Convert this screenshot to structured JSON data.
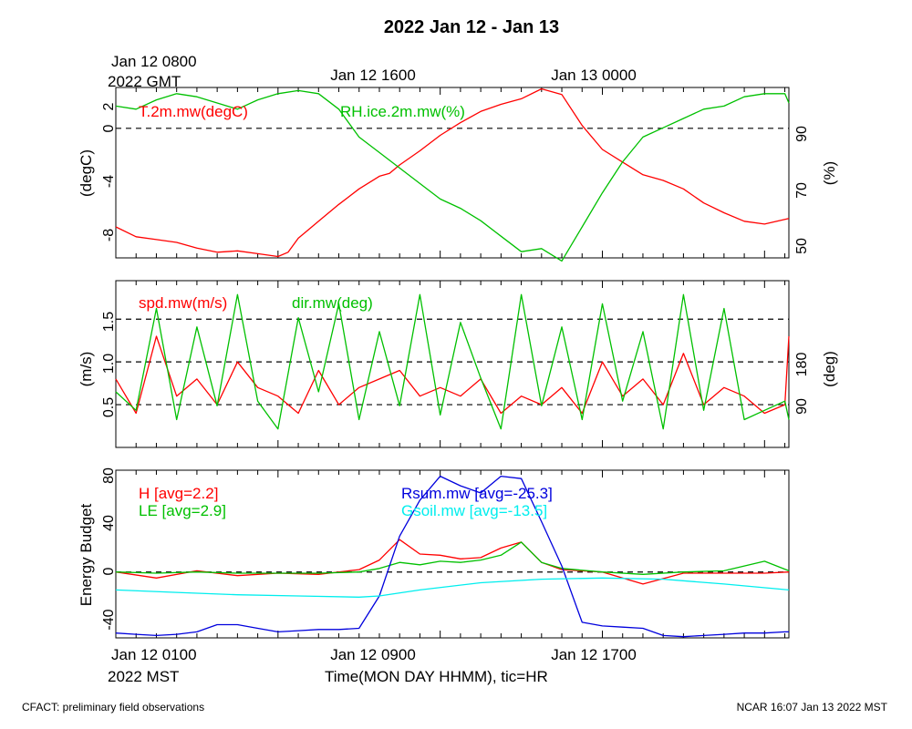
{
  "chart_data": [
    {
      "type": "line",
      "panel": "temperature-humidity",
      "title": "2022 Jan 12 - Jan 13",
      "top_time_labels": [
        "Jan 12 0800",
        "Jan 12 1600",
        "Jan 13 0000"
      ],
      "top_timezone": "2022 GMT",
      "ylabel_left": "(degC)",
      "ylabel_right": "(%)",
      "ylim_left": [
        -9.2,
        2.9
      ],
      "ylim_right": [
        48,
        103
      ],
      "yticks_left": [
        "2",
        "0",
        "-4",
        "-8"
      ],
      "yticks_right": [
        "90",
        "70",
        "50"
      ],
      "reference_lines": [
        0
      ],
      "series": [
        {
          "name": "T.2m.mw(degC)",
          "color": "#ff0000",
          "axis": "left",
          "x": [
            0,
            1,
            2,
            3,
            4,
            5,
            6,
            7,
            8,
            8.5,
            9,
            10,
            11,
            12,
            13,
            13.5,
            14,
            15,
            16,
            17,
            18,
            19,
            20,
            21,
            22,
            23,
            24,
            25,
            26,
            27,
            28,
            29,
            30,
            31,
            32,
            33.2
          ],
          "y": [
            -7.0,
            -7.7,
            -7.9,
            -8.1,
            -8.5,
            -8.8,
            -8.7,
            -8.9,
            -9.1,
            -8.8,
            -7.8,
            -6.6,
            -5.4,
            -4.3,
            -3.4,
            -3.2,
            -2.6,
            -1.6,
            -0.5,
            0.4,
            1.2,
            1.7,
            2.1,
            2.8,
            2.4,
            0.2,
            -1.5,
            -2.4,
            -3.3,
            -3.7,
            -4.3,
            -5.3,
            -6.0,
            -6.6,
            -6.8,
            -6.4
          ]
        },
        {
          "name": "RH.ice.2m.mw(%)",
          "color": "#00c000",
          "axis": "right",
          "x": [
            0,
            1,
            2,
            3,
            4,
            5,
            6,
            7,
            8,
            9,
            10,
            11,
            12,
            13,
            14,
            15,
            16,
            17,
            18,
            19,
            20,
            21,
            22,
            23,
            24,
            25,
            26,
            27,
            28,
            29,
            30,
            31,
            32,
            33,
            33.2
          ],
          "y": [
            97,
            96,
            99,
            101,
            100,
            98,
            96,
            99,
            101,
            102,
            101,
            96,
            87,
            82,
            77,
            72,
            67,
            64,
            60,
            55,
            50,
            51,
            47,
            58,
            69,
            79,
            87,
            90,
            93,
            96,
            97,
            100,
            101,
            101,
            98
          ]
        }
      ],
      "annotations": []
    },
    {
      "type": "line",
      "panel": "wind",
      "ylabel_left": "(m/s)",
      "ylabel_right": "(deg)",
      "ylim_left": [
        0,
        1.95
      ],
      "ylim_right": [
        0,
        360
      ],
      "yticks_left": [
        "0.5",
        "1.0",
        "1.5"
      ],
      "yticks_right": [
        "90",
        "180"
      ],
      "reference_lines": [
        0.5,
        1.0,
        1.5
      ],
      "series": [
        {
          "name": "spd.mw(m/s)",
          "color": "#ff0000",
          "axis": "left",
          "x": [
            0,
            1,
            2,
            3,
            4,
            5,
            6,
            7,
            8,
            9,
            10,
            11,
            12,
            13,
            14,
            15,
            16,
            17,
            18,
            19,
            20,
            21,
            22,
            23,
            24,
            25,
            26,
            27,
            28,
            29,
            30,
            31,
            32,
            33,
            33.2
          ],
          "y": [
            0.8,
            0.4,
            1.3,
            0.6,
            0.8,
            0.5,
            1.0,
            0.7,
            0.6,
            0.4,
            0.9,
            0.5,
            0.7,
            0.8,
            0.9,
            0.6,
            0.7,
            0.6,
            0.8,
            0.4,
            0.6,
            0.5,
            0.7,
            0.4,
            1.0,
            0.6,
            0.8,
            0.5,
            1.1,
            0.5,
            0.7,
            0.6,
            0.4,
            0.5,
            1.3
          ]
        },
        {
          "name": "dir.mw(deg)",
          "color": "#00c000",
          "axis": "right",
          "x": [
            0,
            1,
            2,
            3,
            4,
            5,
            6,
            7,
            8,
            9,
            10,
            11,
            12,
            13,
            14,
            15,
            16,
            17,
            18,
            19,
            20,
            21,
            22,
            23,
            24,
            25,
            26,
            27,
            28,
            29,
            30,
            31,
            32,
            33,
            33.2
          ],
          "y": [
            120,
            80,
            300,
            60,
            260,
            90,
            330,
            100,
            40,
            280,
            120,
            310,
            60,
            250,
            90,
            330,
            70,
            270,
            150,
            40,
            330,
            90,
            260,
            60,
            310,
            100,
            250,
            40,
            330,
            80,
            300,
            60,
            80,
            100,
            60
          ]
        }
      ],
      "annotations": []
    },
    {
      "type": "line",
      "panel": "energy-budget",
      "ylabel_left": "Energy Budget",
      "ylim": [
        -55,
        85
      ],
      "yticks_left": [
        "80",
        "40",
        "0",
        "-40"
      ],
      "reference_lines": [
        0
      ],
      "series": [
        {
          "name": "H [avg=2.2]",
          "color": "#ff0000",
          "x": [
            0,
            2,
            4,
            6,
            8,
            10,
            12,
            13,
            14,
            15,
            16,
            17,
            18,
            19,
            20,
            21,
            22,
            24,
            26,
            28,
            30,
            32,
            33.2
          ],
          "y": [
            0,
            -5,
            1,
            -3,
            -1,
            -2,
            2,
            10,
            27,
            15,
            14,
            11,
            12,
            20,
            25,
            8,
            2,
            0,
            -10,
            -1,
            -1,
            -1,
            0
          ]
        },
        {
          "name": "LE [avg=2.9]",
          "color": "#00c000",
          "x": [
            0,
            2,
            4,
            6,
            8,
            10,
            12,
            13,
            14,
            15,
            16,
            17,
            18,
            19,
            20,
            21,
            22,
            24,
            26,
            28,
            30,
            32,
            33.2
          ],
          "y": [
            0,
            -1,
            0,
            -1,
            -1,
            -1,
            0,
            3,
            8,
            6,
            9,
            8,
            10,
            14,
            25,
            8,
            3,
            0,
            -2,
            0,
            1,
            9,
            1
          ]
        },
        {
          "name": "Rsum.mw [avg=-25.3]",
          "color": "#0000dd",
          "x": [
            0,
            1,
            2,
            3,
            4,
            5,
            6,
            7,
            8,
            9,
            10,
            11,
            12,
            13,
            14,
            15,
            16,
            17,
            18,
            19,
            20,
            21,
            22,
            23,
            24,
            25,
            26,
            27,
            28,
            29,
            30,
            31,
            32,
            33,
            33.2
          ],
          "y": [
            -51,
            -52,
            -53,
            -52,
            -50,
            -44,
            -44,
            -47,
            -50,
            -49,
            -48,
            -48,
            -47,
            -20,
            30,
            60,
            80,
            72,
            66,
            80,
            78,
            42,
            5,
            -42,
            -45,
            -46,
            -47,
            -53,
            -54,
            -53,
            -52,
            -51,
            -51,
            -50,
            -50
          ]
        },
        {
          "name": "Gsoil.mw [avg=-13.5]",
          "color": "#00eeee",
          "x": [
            0,
            3,
            6,
            9,
            12,
            13,
            15,
            18,
            21,
            24,
            27,
            30,
            33.2
          ],
          "y": [
            -15,
            -17,
            -19,
            -20,
            -21,
            -20,
            -15,
            -9,
            -6,
            -5,
            -6,
            -10,
            -15
          ]
        }
      ],
      "annotations": []
    }
  ],
  "xaxis": {
    "bottom_time_labels": [
      "Jan 12 0100",
      "Jan 12 0900",
      "Jan 12 1700"
    ],
    "bottom_timezone": "2022 MST",
    "xlabel": "Time(MON DAY HHMM), tic=HR",
    "xlim": [
      0,
      33.2
    ]
  },
  "footer": {
    "left": "CFACT: preliminary field observations",
    "right": "NCAR 16:07 Jan 13 2022 MST"
  }
}
